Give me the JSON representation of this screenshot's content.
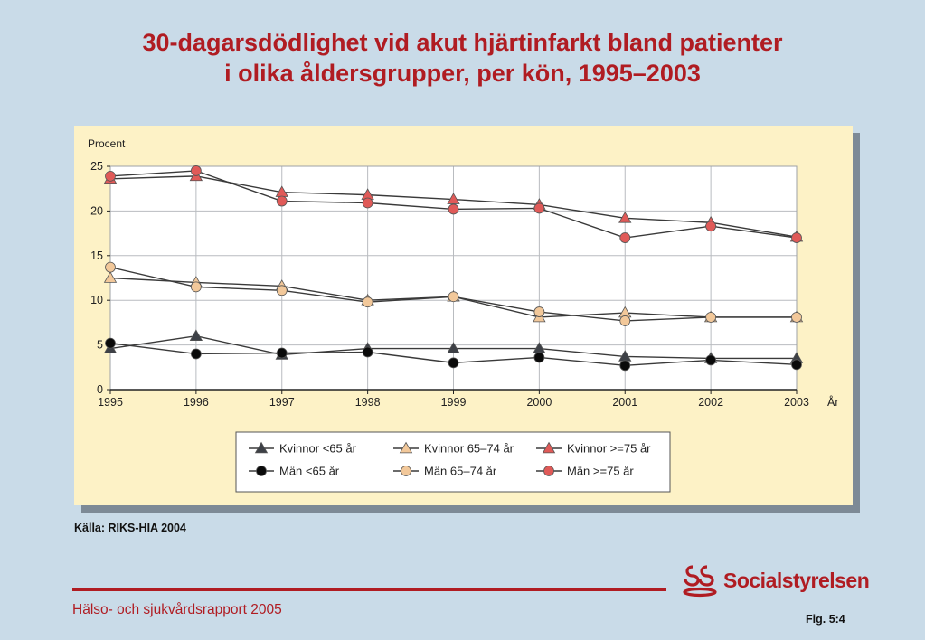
{
  "title_line1": "30-dagarsdödlighet vid akut hjärtinfarkt bland patienter",
  "title_line2": "i olika åldersgrupper, per kön, 1995–2003",
  "source": "Källa: RIKS-HIA 2004",
  "footer": "Hälso- och sjukvårdsrapport 2005",
  "figure_label": "Fig. 5:4",
  "logo_text": "Socialstyrelsen",
  "colors": {
    "title": "#b01c22",
    "panel": "#fdf2c6",
    "dark": "#3d4046",
    "black": "#0a0a0a",
    "beige": "#f2c89a",
    "red": "#e05a58"
  },
  "chart_data": {
    "type": "line",
    "ylabel": "Procent",
    "xlabel": "År",
    "ylim": [
      0,
      25
    ],
    "yticks": [
      0,
      5,
      10,
      15,
      20,
      25
    ],
    "x": [
      "1995",
      "1996",
      "1997",
      "1998",
      "1999",
      "2000",
      "2001",
      "2002",
      "2003"
    ],
    "grid": true,
    "legend_position": "bottom",
    "series": [
      {
        "name": "Kvinnor <65 år",
        "marker": "triangle",
        "color": "#3d4046",
        "values": [
          4.6,
          6.0,
          3.9,
          4.6,
          4.6,
          4.6,
          3.7,
          3.5,
          3.5
        ]
      },
      {
        "name": "Kvinnor 65–74 år",
        "marker": "triangle",
        "color": "#f2c89a",
        "values": [
          12.5,
          12.0,
          11.6,
          10.0,
          10.4,
          8.1,
          8.6,
          8.1,
          8.1
        ]
      },
      {
        "name": "Kvinnor >=75 år",
        "marker": "triangle",
        "color": "#e05a58",
        "values": [
          23.6,
          23.9,
          22.1,
          21.8,
          21.3,
          20.7,
          19.2,
          18.7,
          17.1
        ]
      },
      {
        "name": "Män <65 år",
        "marker": "circle",
        "color": "#0a0a0a",
        "values": [
          5.2,
          4.0,
          4.1,
          4.2,
          3.0,
          3.6,
          2.7,
          3.3,
          2.8
        ]
      },
      {
        "name": "Män 65–74 år",
        "marker": "circle",
        "color": "#f2c89a",
        "values": [
          13.7,
          11.5,
          11.1,
          9.8,
          10.4,
          8.7,
          7.7,
          8.1,
          8.1
        ]
      },
      {
        "name": "Män >=75 år",
        "marker": "circle",
        "color": "#e05a58",
        "values": [
          23.9,
          24.5,
          21.1,
          20.9,
          20.2,
          20.3,
          17.0,
          18.3,
          17.0
        ]
      }
    ]
  }
}
